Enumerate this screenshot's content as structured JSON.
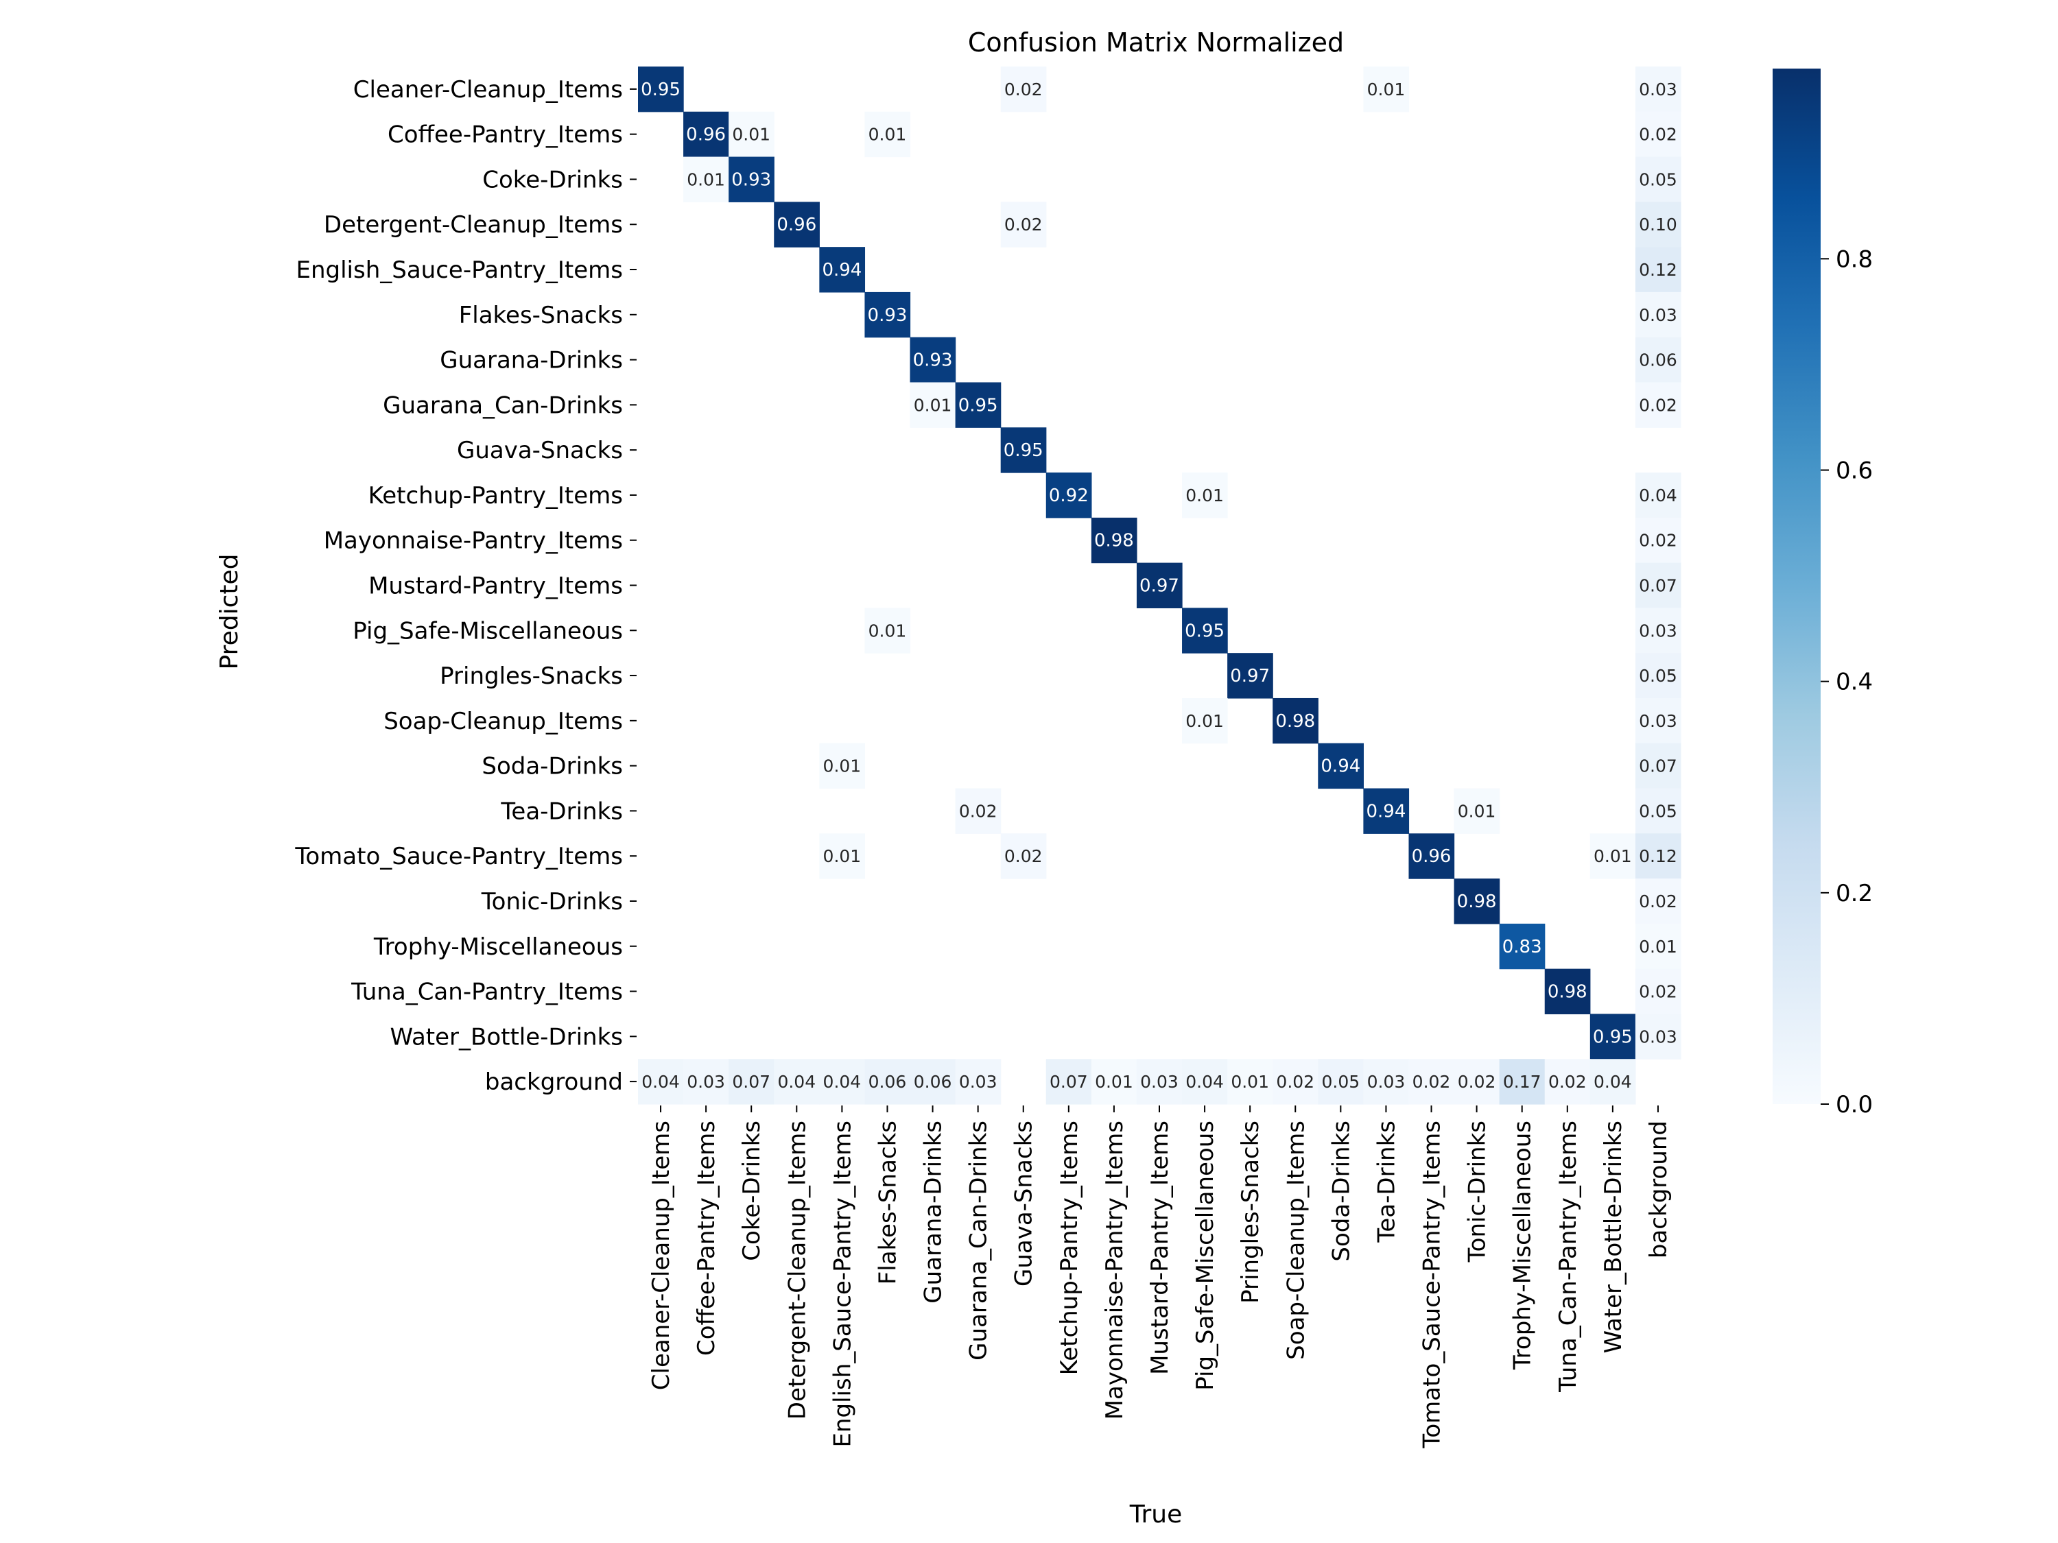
{
  "chart_data": {
    "type": "heatmap",
    "title": "Confusion Matrix Normalized",
    "xlabel": "True",
    "ylabel": "Predicted",
    "labels": [
      "Cleaner-Cleanup_Items",
      "Coffee-Pantry_Items",
      "Coke-Drinks",
      "Detergent-Cleanup_Items",
      "English_Sauce-Pantry_Items",
      "Flakes-Snacks",
      "Guarana-Drinks",
      "Guarana_Can-Drinks",
      "Guava-Snacks",
      "Ketchup-Pantry_Items",
      "Mayonnaise-Pantry_Items",
      "Mustard-Pantry_Items",
      "Pig_Safe-Miscellaneous",
      "Pringles-Snacks",
      "Soap-Cleanup_Items",
      "Soda-Drinks",
      "Tea-Drinks",
      "Tomato_Sauce-Pantry_Items",
      "Tonic-Drinks",
      "Trophy-Miscellaneous",
      "Tuna_Can-Pantry_Items",
      "Water_Bottle-Drinks",
      "background"
    ],
    "cells": [
      {
        "row": 0,
        "col": 0,
        "value": 0.95
      },
      {
        "row": 0,
        "col": 8,
        "value": 0.02
      },
      {
        "row": 0,
        "col": 16,
        "value": 0.01
      },
      {
        "row": 0,
        "col": 22,
        "value": 0.03
      },
      {
        "row": 1,
        "col": 1,
        "value": 0.96
      },
      {
        "row": 1,
        "col": 2,
        "value": 0.01
      },
      {
        "row": 1,
        "col": 5,
        "value": 0.01
      },
      {
        "row": 1,
        "col": 22,
        "value": 0.02
      },
      {
        "row": 2,
        "col": 1,
        "value": 0.01
      },
      {
        "row": 2,
        "col": 2,
        "value": 0.93
      },
      {
        "row": 2,
        "col": 22,
        "value": 0.05
      },
      {
        "row": 3,
        "col": 3,
        "value": 0.96
      },
      {
        "row": 3,
        "col": 8,
        "value": 0.02
      },
      {
        "row": 3,
        "col": 22,
        "value": 0.1
      },
      {
        "row": 4,
        "col": 4,
        "value": 0.94
      },
      {
        "row": 4,
        "col": 22,
        "value": 0.12
      },
      {
        "row": 5,
        "col": 5,
        "value": 0.93
      },
      {
        "row": 5,
        "col": 22,
        "value": 0.03
      },
      {
        "row": 6,
        "col": 6,
        "value": 0.93
      },
      {
        "row": 6,
        "col": 22,
        "value": 0.06
      },
      {
        "row": 7,
        "col": 6,
        "value": 0.01
      },
      {
        "row": 7,
        "col": 7,
        "value": 0.95
      },
      {
        "row": 7,
        "col": 22,
        "value": 0.02
      },
      {
        "row": 8,
        "col": 8,
        "value": 0.95
      },
      {
        "row": 9,
        "col": 9,
        "value": 0.92
      },
      {
        "row": 9,
        "col": 12,
        "value": 0.01
      },
      {
        "row": 9,
        "col": 22,
        "value": 0.04
      },
      {
        "row": 10,
        "col": 10,
        "value": 0.98
      },
      {
        "row": 10,
        "col": 22,
        "value": 0.02
      },
      {
        "row": 11,
        "col": 11,
        "value": 0.97
      },
      {
        "row": 11,
        "col": 22,
        "value": 0.07
      },
      {
        "row": 12,
        "col": 5,
        "value": 0.01
      },
      {
        "row": 12,
        "col": 12,
        "value": 0.95
      },
      {
        "row": 12,
        "col": 22,
        "value": 0.03
      },
      {
        "row": 13,
        "col": 13,
        "value": 0.97
      },
      {
        "row": 13,
        "col": 22,
        "value": 0.05
      },
      {
        "row": 14,
        "col": 12,
        "value": 0.01
      },
      {
        "row": 14,
        "col": 14,
        "value": 0.98
      },
      {
        "row": 14,
        "col": 22,
        "value": 0.03
      },
      {
        "row": 15,
        "col": 4,
        "value": 0.01
      },
      {
        "row": 15,
        "col": 15,
        "value": 0.94
      },
      {
        "row": 15,
        "col": 22,
        "value": 0.07
      },
      {
        "row": 16,
        "col": 7,
        "value": 0.02
      },
      {
        "row": 16,
        "col": 16,
        "value": 0.94
      },
      {
        "row": 16,
        "col": 18,
        "value": 0.01
      },
      {
        "row": 16,
        "col": 22,
        "value": 0.05
      },
      {
        "row": 17,
        "col": 4,
        "value": 0.01
      },
      {
        "row": 17,
        "col": 8,
        "value": 0.02
      },
      {
        "row": 17,
        "col": 17,
        "value": 0.96
      },
      {
        "row": 17,
        "col": 21,
        "value": 0.01
      },
      {
        "row": 17,
        "col": 22,
        "value": 0.12
      },
      {
        "row": 18,
        "col": 18,
        "value": 0.98
      },
      {
        "row": 18,
        "col": 22,
        "value": 0.02
      },
      {
        "row": 19,
        "col": 19,
        "value": 0.83
      },
      {
        "row": 19,
        "col": 22,
        "value": 0.01
      },
      {
        "row": 20,
        "col": 20,
        "value": 0.98
      },
      {
        "row": 20,
        "col": 22,
        "value": 0.02
      },
      {
        "row": 21,
        "col": 21,
        "value": 0.95
      },
      {
        "row": 21,
        "col": 22,
        "value": 0.03
      },
      {
        "row": 22,
        "col": 0,
        "value": 0.04
      },
      {
        "row": 22,
        "col": 1,
        "value": 0.03
      },
      {
        "row": 22,
        "col": 2,
        "value": 0.07
      },
      {
        "row": 22,
        "col": 3,
        "value": 0.04
      },
      {
        "row": 22,
        "col": 4,
        "value": 0.04
      },
      {
        "row": 22,
        "col": 5,
        "value": 0.06
      },
      {
        "row": 22,
        "col": 6,
        "value": 0.06
      },
      {
        "row": 22,
        "col": 7,
        "value": 0.03
      },
      {
        "row": 22,
        "col": 9,
        "value": 0.07
      },
      {
        "row": 22,
        "col": 10,
        "value": 0.01
      },
      {
        "row": 22,
        "col": 11,
        "value": 0.03
      },
      {
        "row": 22,
        "col": 12,
        "value": 0.04
      },
      {
        "row": 22,
        "col": 13,
        "value": 0.01
      },
      {
        "row": 22,
        "col": 14,
        "value": 0.02
      },
      {
        "row": 22,
        "col": 15,
        "value": 0.05
      },
      {
        "row": 22,
        "col": 16,
        "value": 0.03
      },
      {
        "row": 22,
        "col": 17,
        "value": 0.02
      },
      {
        "row": 22,
        "col": 18,
        "value": 0.02
      },
      {
        "row": 22,
        "col": 19,
        "value": 0.17
      },
      {
        "row": 22,
        "col": 20,
        "value": 0.02
      },
      {
        "row": 22,
        "col": 21,
        "value": 0.04
      }
    ],
    "colorbar": {
      "min": 0.0,
      "max": 0.98,
      "ticks": [
        0.0,
        0.2,
        0.4,
        0.6,
        0.8
      ],
      "tick_labels": [
        "0.0",
        "0.2",
        "0.4",
        "0.6",
        "0.8"
      ],
      "colormap": [
        "#f7fbff",
        "#deebf7",
        "#c6dbef",
        "#9ecae1",
        "#6baed6",
        "#4292c6",
        "#2171b5",
        "#08519c",
        "#08306b"
      ]
    },
    "grid": false,
    "legend": "colorbar-right"
  }
}
